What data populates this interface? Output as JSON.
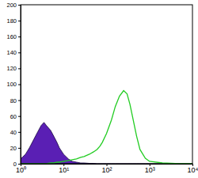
{
  "chart_data": {
    "type": "line",
    "x": [
      1,
      1.3,
      1.6,
      2,
      2.5,
      3,
      3.5,
      4,
      5,
      6,
      7,
      8,
      10,
      13,
      16,
      20,
      25,
      30,
      40,
      50,
      60,
      70,
      80,
      100,
      130,
      160,
      200,
      250,
      300,
      350,
      400,
      500,
      600,
      800,
      1000,
      2000,
      5000,
      10000
    ],
    "series": [
      {
        "type": "area",
        "color": "#5a1fb4",
        "values": [
          6,
          12,
          20,
          30,
          40,
          48,
          52,
          48,
          42,
          34,
          27,
          20,
          12,
          6,
          3,
          2,
          1,
          1,
          0.5,
          0.5,
          0,
          0,
          0,
          0,
          0,
          0,
          0,
          0,
          0,
          0,
          0,
          0,
          0,
          0,
          0,
          0,
          0,
          0
        ]
      },
      {
        "type": "line",
        "color": "#22cc22",
        "values": [
          0,
          0,
          0,
          0,
          0,
          0,
          0,
          0,
          1,
          1,
          2,
          2,
          3,
          4,
          5,
          6,
          8,
          9,
          12,
          15,
          18,
          22,
          27,
          38,
          55,
          72,
          85,
          92,
          88,
          75,
          60,
          35,
          18,
          7,
          3,
          1,
          0,
          0
        ]
      }
    ],
    "log": "x",
    "xlim": [
      1,
      10000
    ],
    "xticks": [
      {
        "value": 1,
        "label": "10⁰"
      },
      {
        "value": 10,
        "label": "10¹"
      },
      {
        "value": 100,
        "label": "10²"
      },
      {
        "value": 1000,
        "label": "10³"
      },
      {
        "value": 10000,
        "label": "10⁴"
      }
    ],
    "ylim": [
      0,
      200
    ],
    "yticks": [
      0,
      20,
      40,
      60,
      80,
      100,
      120,
      140,
      160,
      180,
      200
    ],
    "grid": false,
    "tick_labels": true
  }
}
